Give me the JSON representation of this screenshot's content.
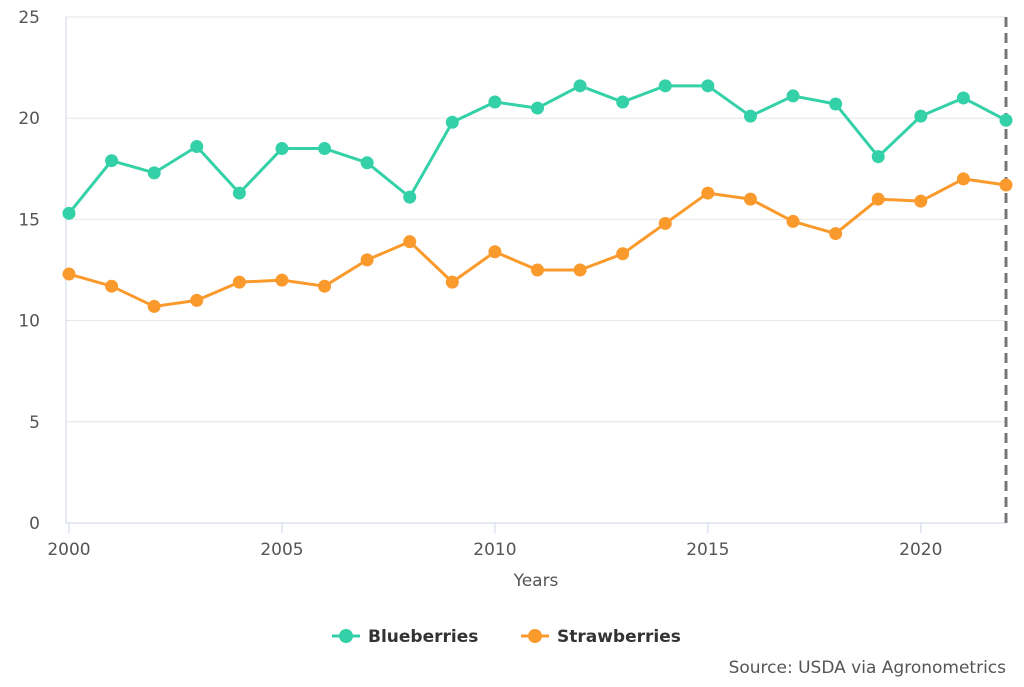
{
  "chart_data": {
    "type": "line",
    "xlabel": "Years",
    "ylabel": "",
    "xlim": [
      2000,
      2022
    ],
    "ylim": [
      0,
      25
    ],
    "yticks": [
      0,
      5,
      10,
      15,
      20,
      25
    ],
    "xticks": [
      2000,
      2005,
      2010,
      2015,
      2020
    ],
    "grid": "horizontal",
    "legend_position": "bottom-center",
    "crosshair_x": 2022,
    "x": [
      2000,
      2001,
      2002,
      2003,
      2004,
      2005,
      2006,
      2007,
      2008,
      2009,
      2010,
      2011,
      2012,
      2013,
      2014,
      2015,
      2016,
      2017,
      2018,
      2019,
      2020,
      2021,
      2022
    ],
    "series": [
      {
        "name": "Blueberries",
        "color": "#34d1a8",
        "values": [
          15.3,
          17.9,
          17.3,
          18.6,
          16.3,
          18.5,
          18.5,
          17.8,
          16.1,
          19.8,
          20.8,
          20.5,
          21.6,
          20.8,
          21.6,
          21.6,
          20.1,
          21.1,
          20.7,
          18.1,
          20.1,
          21.0,
          19.9
        ]
      },
      {
        "name": "Strawberries",
        "color": "#fb9a2c",
        "values": [
          12.3,
          11.7,
          10.7,
          11.0,
          11.9,
          12.0,
          11.7,
          13.0,
          13.9,
          11.9,
          13.4,
          12.5,
          12.5,
          13.3,
          14.8,
          16.3,
          16.0,
          14.9,
          14.3,
          16.0,
          15.9,
          17.0,
          16.7
        ]
      }
    ],
    "source": "Source: USDA via Agronometrics"
  }
}
